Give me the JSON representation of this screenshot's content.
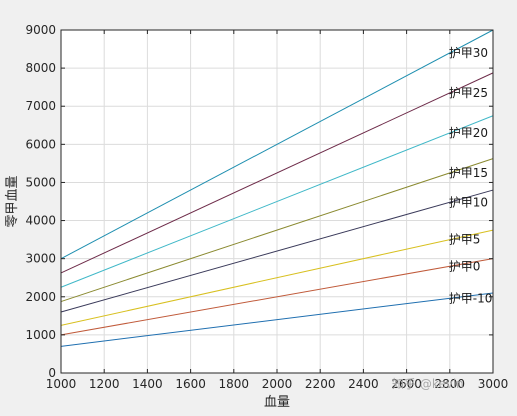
{
  "chart_data": {
    "type": "line",
    "title": "",
    "xlabel": "血量",
    "ylabel": "零甲血量",
    "xlim": [
      1000,
      3000
    ],
    "ylim": [
      0,
      9000
    ],
    "x_ticks": [
      1000,
      1200,
      1400,
      1600,
      1800,
      2000,
      2200,
      2400,
      2600,
      2800,
      3000
    ],
    "y_ticks": [
      0,
      1000,
      2000,
      3000,
      4000,
      5000,
      6000,
      7000,
      8000,
      9000
    ],
    "grid": true,
    "x": [
      1000,
      3000
    ],
    "series": [
      {
        "name": "护甲30",
        "values": [
          3000,
          9000
        ],
        "color": "#1f8fb0"
      },
      {
        "name": "护甲25",
        "values": [
          2625,
          7875
        ],
        "color": "#6e2c4a"
      },
      {
        "name": "护甲20",
        "values": [
          2250,
          6750
        ],
        "color": "#40b8c8"
      },
      {
        "name": "护甲15",
        "values": [
          1875,
          5625
        ],
        "color": "#8a8a30"
      },
      {
        "name": "护甲10",
        "values": [
          1600,
          4800
        ],
        "color": "#3a3a5a"
      },
      {
        "name": "护甲5",
        "values": [
          1250,
          3750
        ],
        "color": "#d8c020"
      },
      {
        "name": "护甲0",
        "values": [
          1000,
          3000
        ],
        "color": "#c05a3a"
      },
      {
        "name": "护甲-10",
        "values": [
          700,
          2100
        ],
        "color": "#1f6fb0"
      }
    ],
    "label_at_x": 2800
  },
  "watermark": "知乎 @kevin"
}
